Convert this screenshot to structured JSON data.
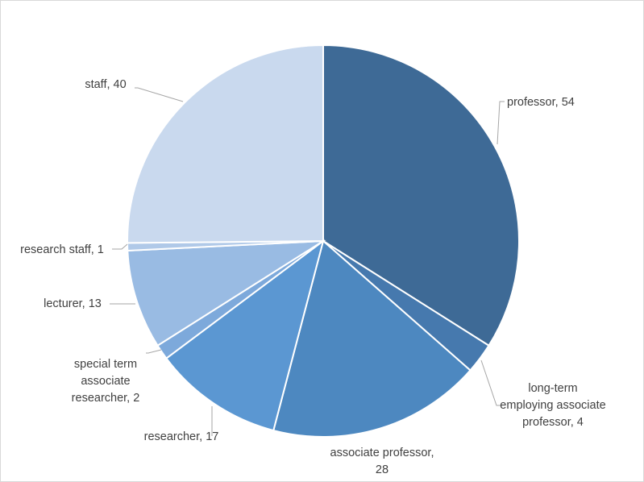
{
  "chart_data": {
    "type": "pie",
    "slices": [
      {
        "label": "professor",
        "value": 54,
        "color": "#3e6a96"
      },
      {
        "label": "long-term employing associate professor",
        "value": 4,
        "color": "#4679ae"
      },
      {
        "label": "associate professor",
        "value": 28,
        "color": "#4d88c0"
      },
      {
        "label": "researcher",
        "value": 17,
        "color": "#5b97d2"
      },
      {
        "label": "special term associate researcher",
        "value": 2,
        "color": "#7da9db"
      },
      {
        "label": "lecturer",
        "value": 13,
        "color": "#99bbe3"
      },
      {
        "label": "research staff",
        "value": 1,
        "color": "#b0c9e8"
      },
      {
        "label": "staff",
        "value": 40,
        "color": "#c9d9ee"
      }
    ],
    "data_labels": [
      [
        "professor, 54"
      ],
      [
        "long-term",
        "employing associate",
        "professor, 4"
      ],
      [
        "associate professor,",
        "28"
      ],
      [
        "researcher, 17"
      ],
      [
        "special term",
        "associate",
        "researcher, 2"
      ],
      [
        "lecturer, 13"
      ],
      [
        "research staff, 1"
      ],
      [
        "staff, 40"
      ]
    ],
    "start_angle": "12 o'clock",
    "direction": "clockwise",
    "legend": "none"
  }
}
